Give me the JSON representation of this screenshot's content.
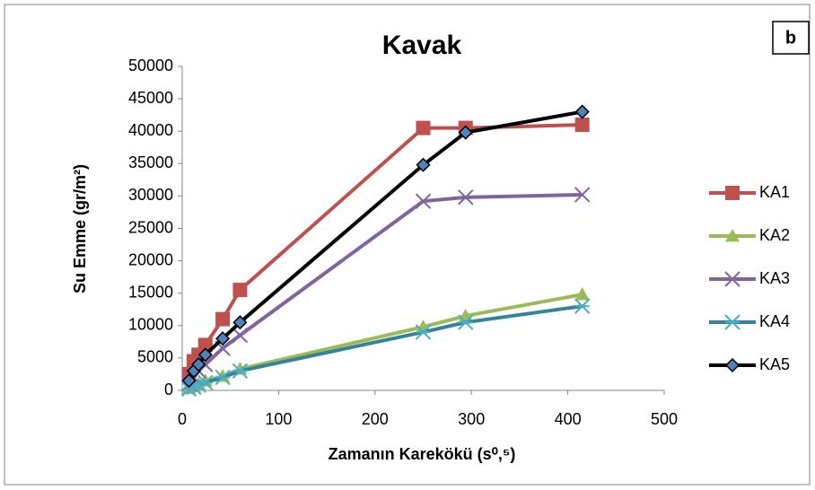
{
  "chart_data": {
    "type": "line",
    "title": "Kavak",
    "annotation": "b",
    "x_label": "Zamanın Karekökü (s⁰,⁵)",
    "y_label": "Su Emme (gr/m²)",
    "x": [
      7,
      12,
      17,
      24,
      42,
      60,
      250,
      294,
      415
    ],
    "series": [
      {
        "name": "KA1",
        "color": "#C0504D",
        "marker": "square",
        "marker_color": "#C0504D",
        "values": [
          2500,
          4500,
          5500,
          7000,
          11000,
          15500,
          40500,
          40500,
          41000
        ]
      },
      {
        "name": "KA2",
        "color": "#9BBB59",
        "marker": "triangle",
        "marker_color": "#9BBB59",
        "values": [
          300,
          600,
          1000,
          1500,
          2200,
          3300,
          9800,
          11500,
          14800
        ]
      },
      {
        "name": "KA3",
        "color": "#8064A2",
        "marker": "x",
        "marker_color": "#8064A2",
        "values": [
          1000,
          2000,
          3000,
          4000,
          6500,
          8500,
          29200,
          29800,
          30200
        ]
      },
      {
        "name": "KA4",
        "color": "#31849B",
        "marker": "star",
        "marker_color": "#4BACC6",
        "values": [
          200,
          500,
          800,
          1200,
          2000,
          3000,
          9000,
          10500,
          13000
        ]
      },
      {
        "name": "KA5",
        "color": "#000000",
        "marker": "diamond",
        "marker_color": "#4F81BD",
        "values": [
          1500,
          3000,
          4000,
          5500,
          8000,
          10500,
          34800,
          39800,
          43000
        ]
      }
    ],
    "xlim": [
      0,
      500
    ],
    "xticks": [
      0,
      100,
      200,
      300,
      400,
      500
    ],
    "ylim": [
      0,
      50000
    ],
    "yticks": [
      0,
      5000,
      10000,
      15000,
      20000,
      25000,
      30000,
      35000,
      40000,
      45000,
      50000
    ],
    "grid": false,
    "legend": "right"
  }
}
